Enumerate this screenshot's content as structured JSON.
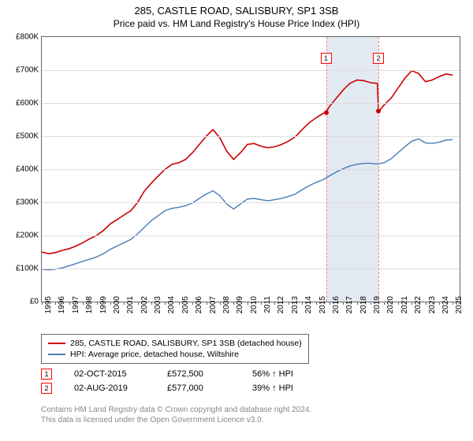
{
  "title_line1": "285, CASTLE ROAD, SALISBURY, SP1 3SB",
  "title_line2": "Price paid vs. HM Land Registry's House Price Index (HPI)",
  "chart": {
    "type": "line",
    "background_color": "#ffffff",
    "grid_color": "#dddddd",
    "border_color": "#666666",
    "x_years": [
      1995,
      1996,
      1997,
      1998,
      1999,
      2000,
      2001,
      2002,
      2003,
      2004,
      2005,
      2006,
      2007,
      2008,
      2009,
      2010,
      2011,
      2012,
      2013,
      2014,
      2015,
      2016,
      2017,
      2018,
      2019,
      2020,
      2021,
      2022,
      2023,
      2024,
      2025
    ],
    "x_range": [
      1995,
      2025.5
    ],
    "y_ticks": [
      0,
      100000,
      200000,
      300000,
      400000,
      500000,
      600000,
      700000,
      800000
    ],
    "y_tick_labels": [
      "£0",
      "£100K",
      "£200K",
      "£300K",
      "£400K",
      "£500K",
      "£600K",
      "£700K",
      "£800K"
    ],
    "y_range": [
      0,
      800000
    ],
    "label_fontsize": 10,
    "title_fontsize": 13,
    "shade_band": {
      "x_start": 2015.75,
      "x_end": 2019.58,
      "color": "#dbe4ee"
    },
    "vlines": [
      {
        "x": 2015.75,
        "color": "#ff8080"
      },
      {
        "x": 2019.58,
        "color": "#ff8080"
      }
    ],
    "markers": [
      {
        "label": "1",
        "x": 2015.75,
        "y": 735000,
        "dot_y": 572500,
        "dot_color": "#cc0000"
      },
      {
        "label": "2",
        "x": 2019.58,
        "y": 735000,
        "dot_y": 577000,
        "dot_color": "#cc0000"
      }
    ],
    "series": [
      {
        "name": "price_paid",
        "color": "#cc0000",
        "width": 1.6,
        "points": [
          [
            1995,
            150000
          ],
          [
            1995.5,
            145000
          ],
          [
            1996,
            148000
          ],
          [
            1996.5,
            155000
          ],
          [
            1997,
            160000
          ],
          [
            1997.5,
            168000
          ],
          [
            1998,
            178000
          ],
          [
            1998.5,
            190000
          ],
          [
            1999,
            200000
          ],
          [
            1999.5,
            215000
          ],
          [
            2000,
            235000
          ],
          [
            2000.5,
            248000
          ],
          [
            2001,
            262000
          ],
          [
            2001.5,
            275000
          ],
          [
            2002,
            300000
          ],
          [
            2002.5,
            335000
          ],
          [
            2003,
            358000
          ],
          [
            2003.5,
            380000
          ],
          [
            2004,
            400000
          ],
          [
            2004.5,
            415000
          ],
          [
            2005,
            420000
          ],
          [
            2005.5,
            430000
          ],
          [
            2006,
            450000
          ],
          [
            2006.5,
            475000
          ],
          [
            2007,
            500000
          ],
          [
            2007.5,
            520000
          ],
          [
            2008,
            495000
          ],
          [
            2008.5,
            455000
          ],
          [
            2009,
            430000
          ],
          [
            2009.5,
            450000
          ],
          [
            2010,
            475000
          ],
          [
            2010.5,
            478000
          ],
          [
            2011,
            470000
          ],
          [
            2011.5,
            465000
          ],
          [
            2012,
            468000
          ],
          [
            2012.5,
            475000
          ],
          [
            2013,
            485000
          ],
          [
            2013.5,
            498000
          ],
          [
            2014,
            520000
          ],
          [
            2014.5,
            540000
          ],
          [
            2015,
            555000
          ],
          [
            2015.5,
            568000
          ],
          [
            2015.75,
            572500
          ],
          [
            2016,
            590000
          ],
          [
            2016.5,
            615000
          ],
          [
            2017,
            640000
          ],
          [
            2017.5,
            660000
          ],
          [
            2018,
            670000
          ],
          [
            2018.5,
            668000
          ],
          [
            2019,
            662000
          ],
          [
            2019.5,
            660000
          ],
          [
            2019.58,
            577000
          ],
          [
            2019.7,
            580000
          ],
          [
            2020,
            595000
          ],
          [
            2020.5,
            615000
          ],
          [
            2021,
            645000
          ],
          [
            2021.5,
            675000
          ],
          [
            2022,
            698000
          ],
          [
            2022.5,
            690000
          ],
          [
            2023,
            665000
          ],
          [
            2023.5,
            670000
          ],
          [
            2024,
            680000
          ],
          [
            2024.5,
            688000
          ],
          [
            2025,
            685000
          ]
        ]
      },
      {
        "name": "hpi",
        "color": "#4a7bb7",
        "width": 1.4,
        "points": [
          [
            1995,
            98000
          ],
          [
            1995.5,
            96000
          ],
          [
            1996,
            98000
          ],
          [
            1996.5,
            102000
          ],
          [
            1997,
            108000
          ],
          [
            1997.5,
            115000
          ],
          [
            1998,
            122000
          ],
          [
            1998.5,
            128000
          ],
          [
            1999,
            135000
          ],
          [
            1999.5,
            145000
          ],
          [
            2000,
            158000
          ],
          [
            2000.5,
            168000
          ],
          [
            2001,
            178000
          ],
          [
            2001.5,
            188000
          ],
          [
            2002,
            205000
          ],
          [
            2002.5,
            225000
          ],
          [
            2003,
            245000
          ],
          [
            2003.5,
            260000
          ],
          [
            2004,
            275000
          ],
          [
            2004.5,
            282000
          ],
          [
            2005,
            285000
          ],
          [
            2005.5,
            290000
          ],
          [
            2006,
            298000
          ],
          [
            2006.5,
            312000
          ],
          [
            2007,
            325000
          ],
          [
            2007.5,
            335000
          ],
          [
            2008,
            320000
          ],
          [
            2008.5,
            295000
          ],
          [
            2009,
            280000
          ],
          [
            2009.5,
            295000
          ],
          [
            2010,
            310000
          ],
          [
            2010.5,
            312000
          ],
          [
            2011,
            308000
          ],
          [
            2011.5,
            305000
          ],
          [
            2012,
            308000
          ],
          [
            2012.5,
            312000
          ],
          [
            2013,
            318000
          ],
          [
            2013.5,
            325000
          ],
          [
            2014,
            338000
          ],
          [
            2014.5,
            350000
          ],
          [
            2015,
            360000
          ],
          [
            2015.5,
            368000
          ],
          [
            2016,
            380000
          ],
          [
            2016.5,
            392000
          ],
          [
            2017,
            402000
          ],
          [
            2017.5,
            410000
          ],
          [
            2018,
            415000
          ],
          [
            2018.5,
            418000
          ],
          [
            2019,
            418000
          ],
          [
            2019.5,
            416000
          ],
          [
            2020,
            420000
          ],
          [
            2020.5,
            432000
          ],
          [
            2021,
            450000
          ],
          [
            2021.5,
            468000
          ],
          [
            2022,
            485000
          ],
          [
            2022.5,
            492000
          ],
          [
            2023,
            480000
          ],
          [
            2023.5,
            478000
          ],
          [
            2024,
            482000
          ],
          [
            2024.5,
            488000
          ],
          [
            2025,
            490000
          ]
        ]
      }
    ]
  },
  "legend": {
    "items": [
      {
        "color": "#cc0000",
        "label": "285, CASTLE ROAD, SALISBURY, SP1 3SB (detached house)"
      },
      {
        "color": "#4a7bb7",
        "label": "HPI: Average price, detached house, Wiltshire"
      }
    ]
  },
  "events": [
    {
      "num": "1",
      "date": "02-OCT-2015",
      "price": "£572,500",
      "delta": "56% ↑ HPI"
    },
    {
      "num": "2",
      "date": "02-AUG-2019",
      "price": "£577,000",
      "delta": "39% ↑ HPI"
    }
  ],
  "footer_line1": "Contains HM Land Registry data © Crown copyright and database right 2024.",
  "footer_line2": "This data is licensed under the Open Government Licence v3.0."
}
